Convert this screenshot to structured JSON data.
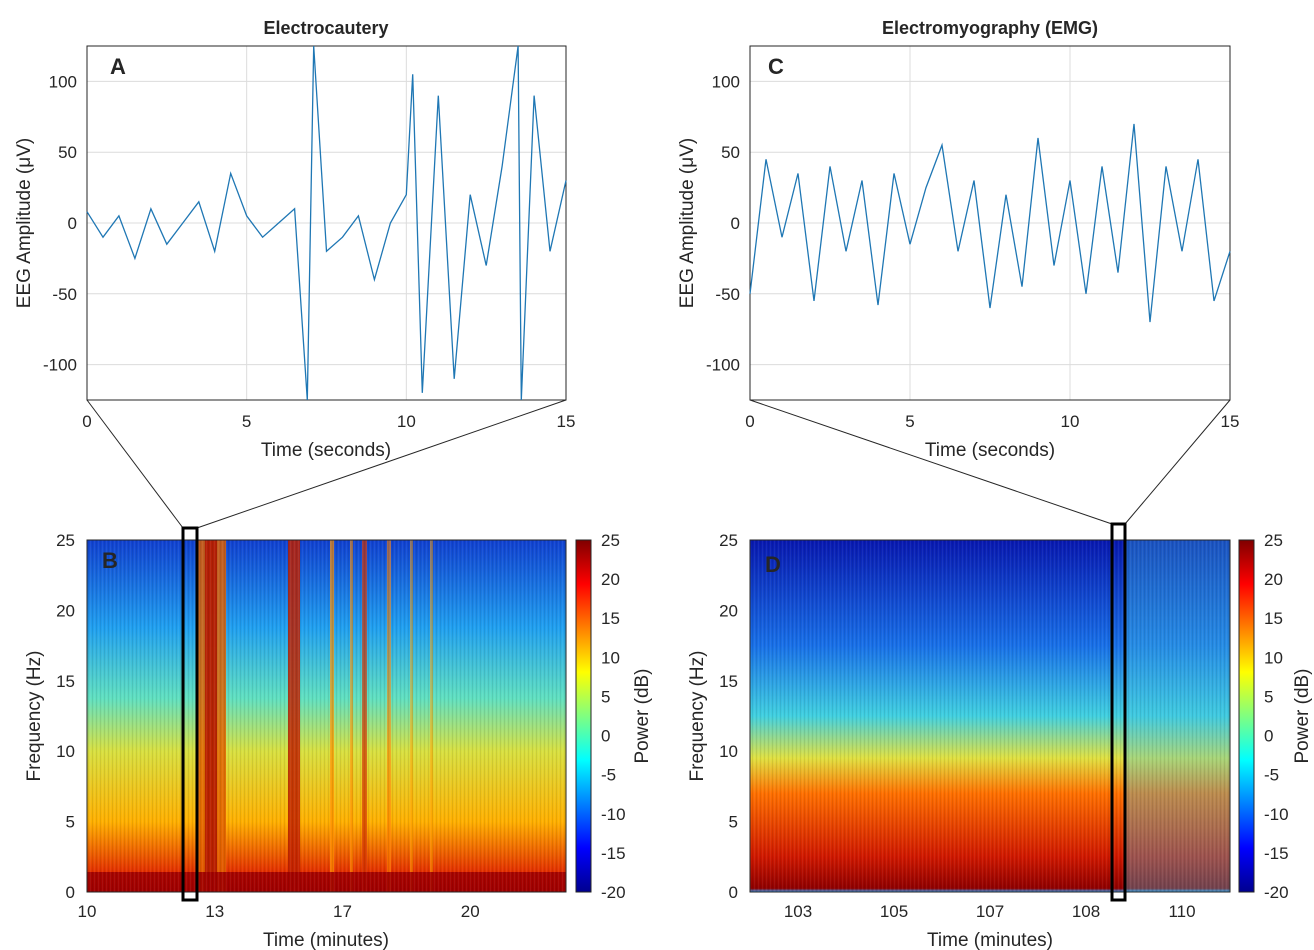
{
  "chart_data": [
    {
      "panel": "A",
      "type": "line",
      "title": "Electrocautery",
      "xlabel": "Time (seconds)",
      "ylabel": "EEG Amplitude (μV)",
      "xlim": [
        0,
        15
      ],
      "ylim": [
        -125,
        125
      ],
      "xticks": [
        "0",
        "5",
        "10",
        "15"
      ],
      "yticks": [
        "-100",
        "-50",
        "0",
        "50",
        "100"
      ],
      "grid": true,
      "color": "#1f77b4",
      "series": [
        {
          "x": [
            0,
            0.5,
            1,
            1.5,
            2,
            2.5,
            3,
            3.5,
            4,
            4.5,
            5,
            5.5,
            6,
            6.5,
            6.9,
            7.1,
            7.5,
            8,
            8.5,
            9,
            9.5,
            10,
            10.2,
            10.5,
            11,
            11.5,
            12,
            12.5,
            13,
            13.5,
            13.6,
            14,
            14.5,
            15
          ],
          "values": [
            8,
            -10,
            5,
            -25,
            10,
            -15,
            0,
            15,
            -20,
            35,
            5,
            -10,
            0,
            10,
            -125,
            125,
            -20,
            -10,
            5,
            -40,
            0,
            20,
            105,
            -120,
            90,
            -110,
            20,
            -30,
            40,
            125,
            -125,
            90,
            -20,
            30
          ]
        }
      ]
    },
    {
      "panel": "B",
      "type": "heatmap",
      "xlabel": "Time (minutes)",
      "ylabel": "Frequency (Hz)",
      "xticks": [
        "10",
        "13",
        "17",
        "20"
      ],
      "yticks": [
        "0",
        "5",
        "10",
        "15",
        "20",
        "25"
      ],
      "ylim": [
        0,
        25
      ],
      "colorbar": {
        "label": "Power (dB)",
        "min": -20,
        "max": 25,
        "ticks": [
          "25",
          "20",
          "15",
          "10",
          "5",
          "0",
          "-5",
          "-10",
          "-15",
          "-20"
        ]
      },
      "highlight_window": "12.5 – 13"
    },
    {
      "panel": "C",
      "type": "line",
      "title": "Electromyography (EMG)",
      "xlabel": "Time (seconds)",
      "ylabel": "EEG Amplitude (μV)",
      "xlim": [
        0,
        15
      ],
      "ylim": [
        -125,
        125
      ],
      "xticks": [
        "0",
        "5",
        "10",
        "15"
      ],
      "yticks": [
        "-100",
        "-50",
        "0",
        "50",
        "100"
      ],
      "grid": true,
      "color": "#1f77b4",
      "series": [
        {
          "x": [
            0,
            0.5,
            1,
            1.5,
            2,
            2.5,
            3,
            3.5,
            4,
            4.5,
            5,
            5.5,
            6,
            6.5,
            7,
            7.5,
            8,
            8.5,
            9,
            9.5,
            10,
            10.5,
            11,
            11.5,
            12,
            12.5,
            13,
            13.5,
            14,
            14.5,
            15
          ],
          "values": [
            -50,
            45,
            -10,
            35,
            -55,
            40,
            -20,
            30,
            -58,
            35,
            -15,
            25,
            55,
            -20,
            30,
            -60,
            20,
            -45,
            60,
            -30,
            30,
            -50,
            40,
            -35,
            70,
            -70,
            40,
            -20,
            45,
            -55,
            -20
          ]
        }
      ]
    },
    {
      "panel": "D",
      "type": "heatmap",
      "xlabel": "Time (minutes)",
      "ylabel": "Frequency (Hz)",
      "xticks": [
        "103",
        "105",
        "107",
        "108",
        "110"
      ],
      "yticks": [
        "0",
        "5",
        "10",
        "15",
        "20",
        "25"
      ],
      "ylim": [
        0,
        25
      ],
      "colorbar": {
        "label": "Power (dB)",
        "min": -20,
        "max": 25,
        "ticks": [
          "25",
          "20",
          "15",
          "10",
          "5",
          "0",
          "-5",
          "-10",
          "-15",
          "-20"
        ]
      },
      "highlight_window": "108.5 – 109"
    }
  ]
}
